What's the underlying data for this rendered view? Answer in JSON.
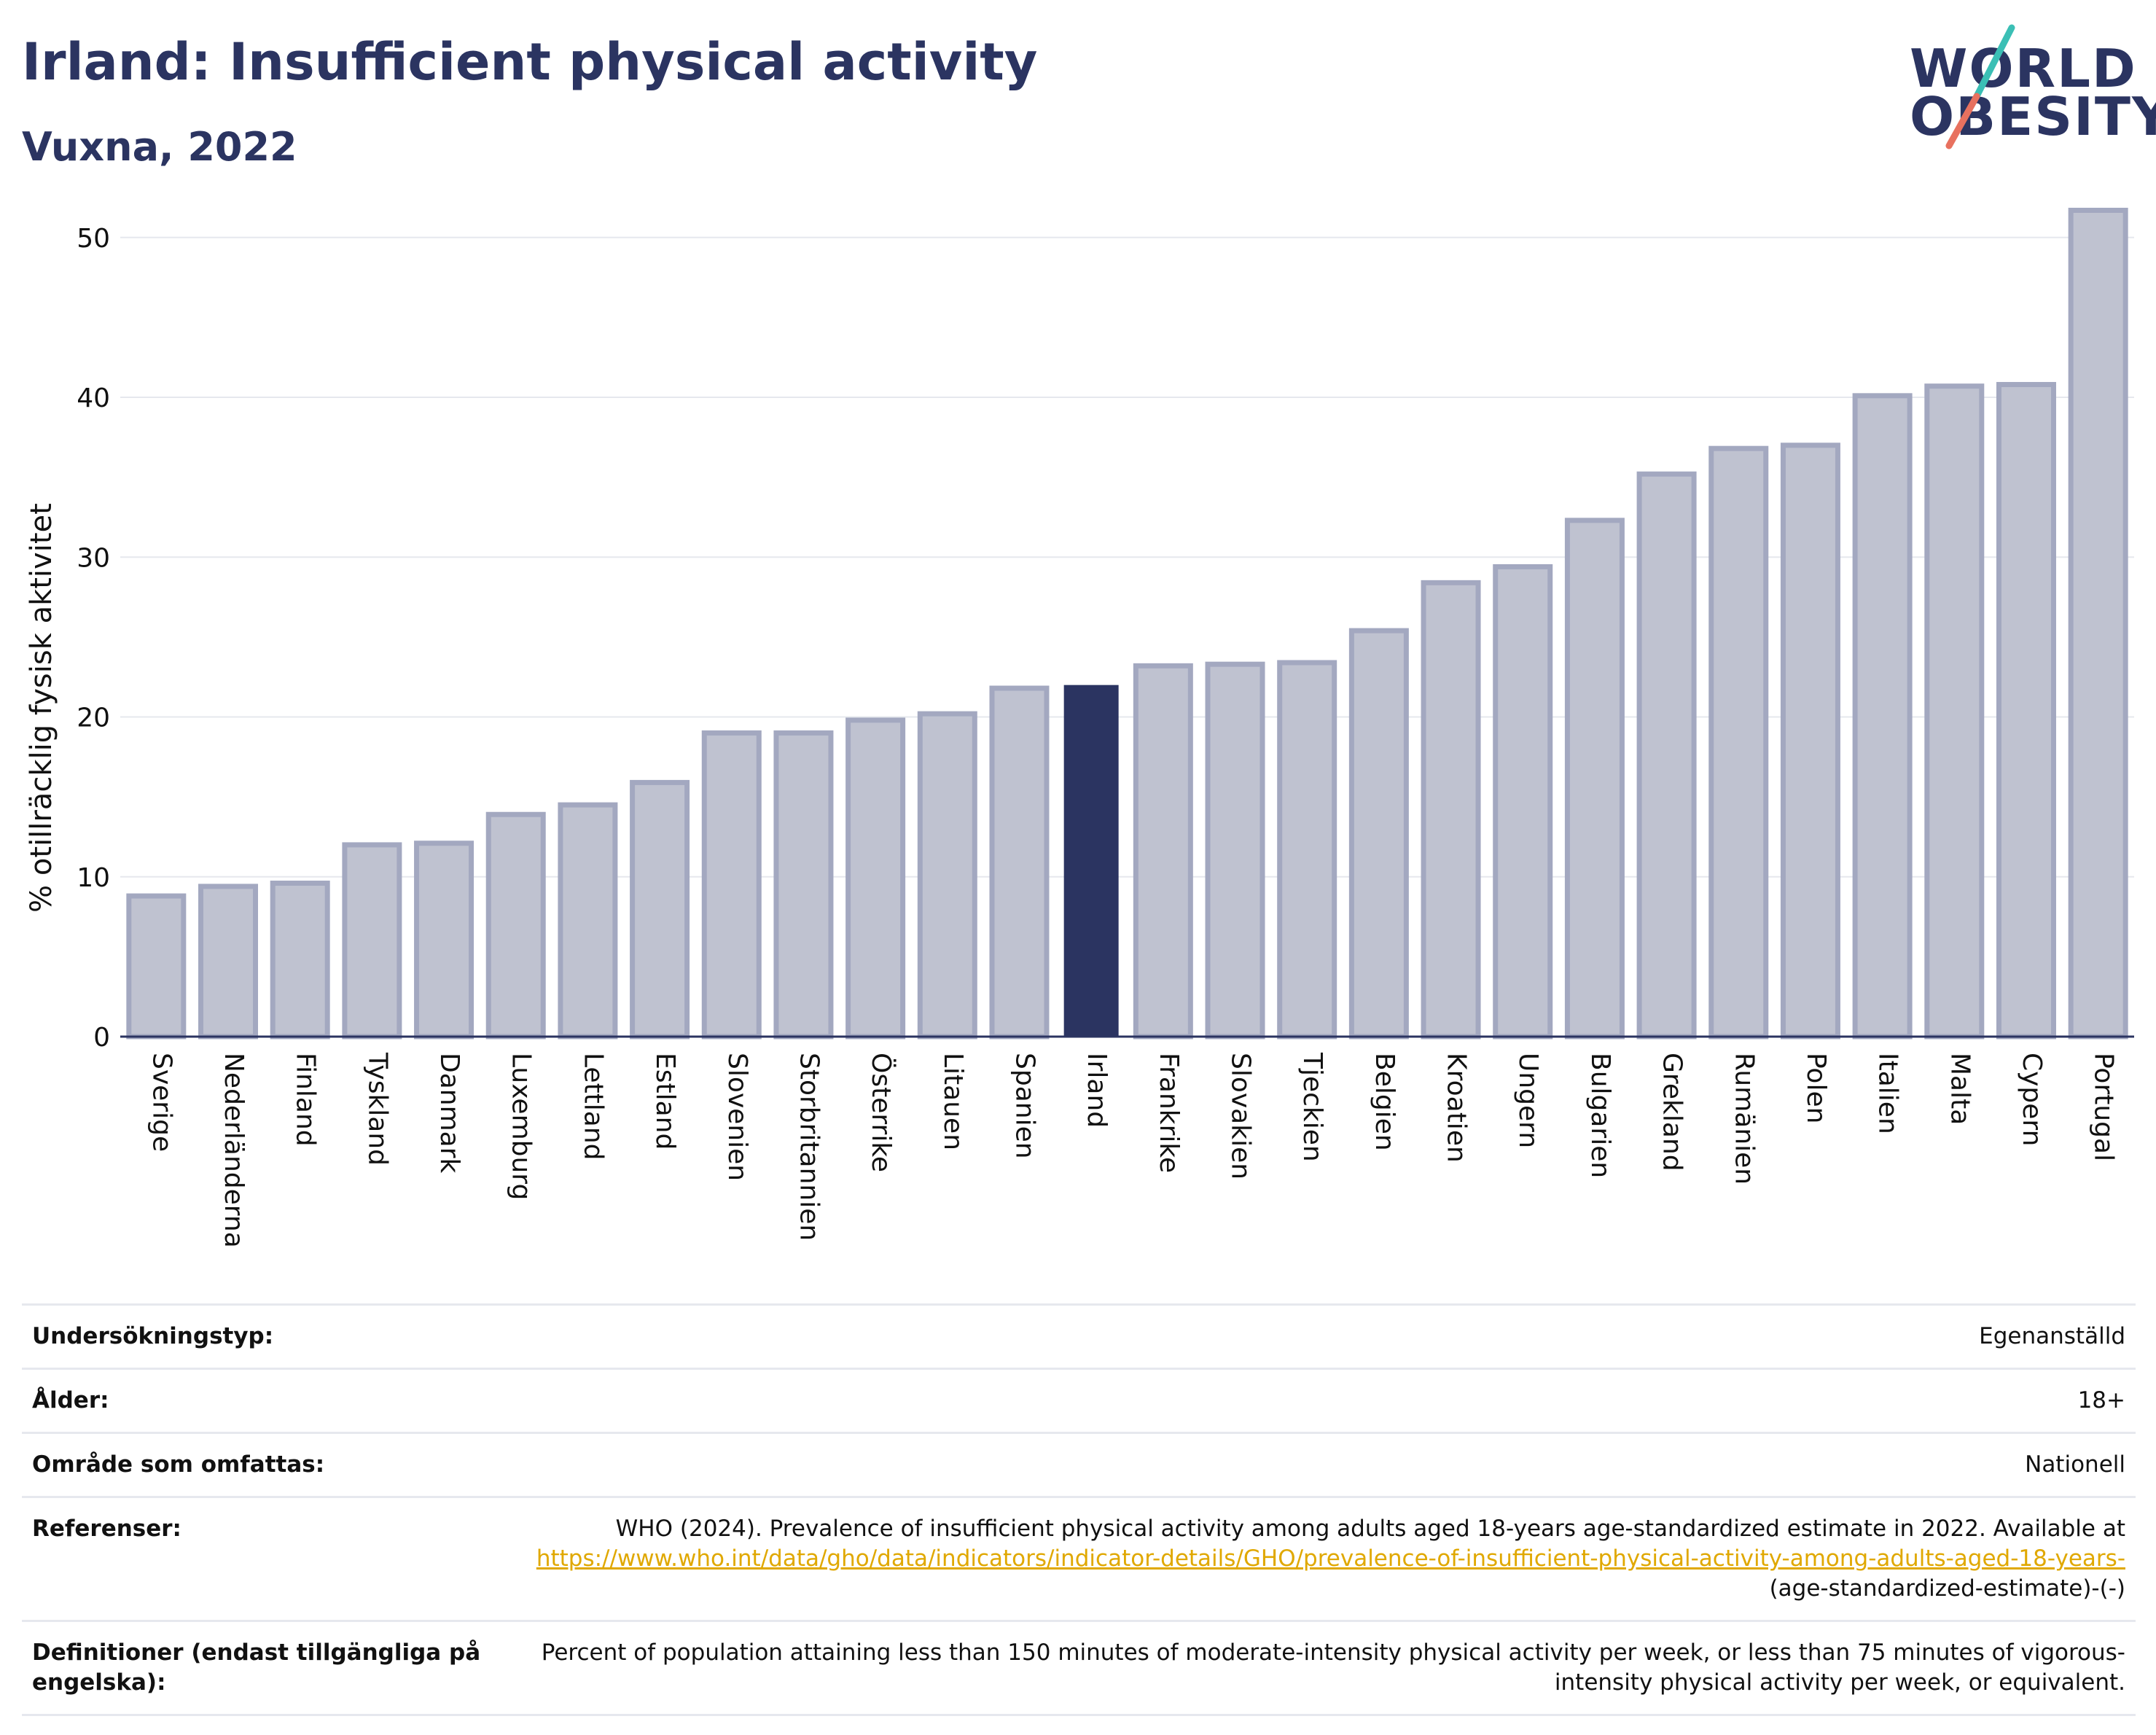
{
  "header": {
    "title": "Irland: Insufficient physical activity",
    "subtitle": "Vuxna, 2022"
  },
  "logo": {
    "line1": "WORLD",
    "line2": "OBESITY"
  },
  "colors": {
    "highlight": "#2b3461",
    "bar": "#bfc2d0",
    "bar_border": "#a3a8c0",
    "grid": "#e6e8ee",
    "link": "#e0a800"
  },
  "chart_data": {
    "type": "bar",
    "ylabel": "% otillräcklig fysisk aktivitet",
    "xlabel": "",
    "ylim": [
      0,
      53
    ],
    "yticks": [
      0,
      10,
      20,
      30,
      40,
      50
    ],
    "grid": true,
    "highlight": "Irland",
    "categories": [
      "Sverige",
      "Nederländerna",
      "Finland",
      "Tyskland",
      "Danmark",
      "Luxemburg",
      "Lettland",
      "Estland",
      "Slovenien",
      "Storbritannien",
      "Österrike",
      "Litauen",
      "Spanien",
      "Irland",
      "Frankrike",
      "Slovakien",
      "Tjeckien",
      "Belgien",
      "Kroatien",
      "Ungern",
      "Bulgarien",
      "Grekland",
      "Rumänien",
      "Polen",
      "Italien",
      "Malta",
      "Cypern",
      "Portugal"
    ],
    "values": [
      8.8,
      9.4,
      9.6,
      12.0,
      12.1,
      13.9,
      14.5,
      15.9,
      19.0,
      19.0,
      19.8,
      20.2,
      21.8,
      22.0,
      23.2,
      23.3,
      23.4,
      25.4,
      28.4,
      29.4,
      32.3,
      35.2,
      36.8,
      37.0,
      40.1,
      40.7,
      40.8,
      51.7
    ]
  },
  "details": {
    "survey_type": {
      "label": "Undersökningstyp:",
      "value": "Egenanställd"
    },
    "age": {
      "label": "Ålder:",
      "value": "18+"
    },
    "area": {
      "label": "Område som omfattas:",
      "value": "Nationell"
    },
    "references": {
      "label": "Referenser:",
      "text": "WHO (2024). Prevalence of insufficient physical activity among adults aged 18-years age-standardized estimate in 2022. Available at",
      "link": "https://www.who.int/data/gho/data/indicators/indicator-details/GHO/prevalence-of-insufficient-physical-activity-among-adults-aged-18-years-",
      "suffix": "(age-standardized-estimate)-(-)"
    },
    "definitions": {
      "label": "Definitioner (endast tillgängliga på engelska):",
      "value": "Percent of population attaining less than 150 minutes of moderate-intensity physical activity per week, or less than 75 minutes of vigorous-intensity physical activity per week, or equivalent."
    }
  }
}
